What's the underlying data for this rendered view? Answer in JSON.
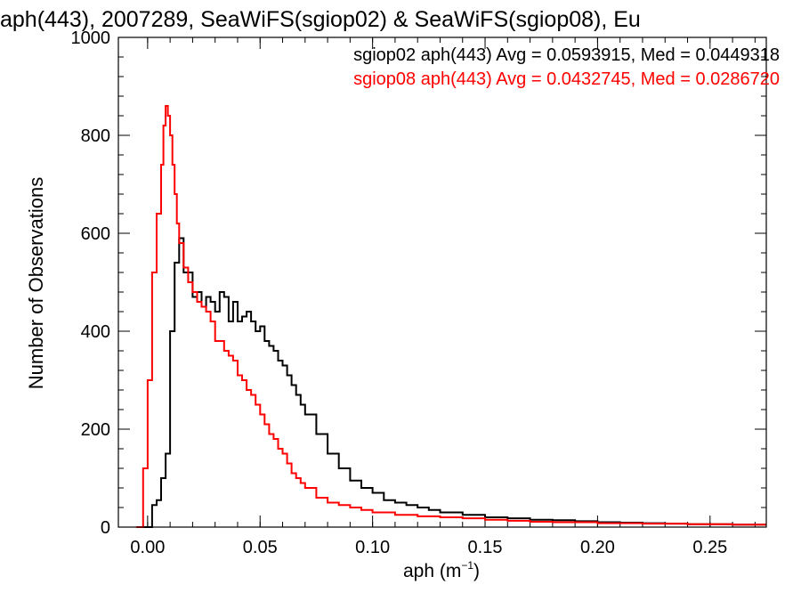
{
  "chart_data": {
    "type": "line",
    "title": "aph(443), 2007289, SeaWiFS(sgiop02) & SeaWiFS(sgiop08), Eu",
    "xlabel": "aph (m",
    "xlabel_sup": "−1",
    "xlabel_close": ")",
    "ylabel": "Number of Observations",
    "xlim": [
      -0.013,
      0.275
    ],
    "ylim": [
      0,
      1000
    ],
    "xticks": [
      0.0,
      0.05,
      0.1,
      0.15,
      0.2,
      0.25
    ],
    "xtick_labels": [
      "0.00",
      "0.05",
      "0.10",
      "0.15",
      "0.20",
      "0.25"
    ],
    "yticks": [
      0,
      200,
      400,
      600,
      800,
      1000
    ],
    "ytick_labels": [
      "0",
      "200",
      "400",
      "600",
      "800",
      "1000"
    ],
    "x_minor_step": 0.01,
    "y_minor_step": 40,
    "annotations": [
      {
        "text": "sgiop02 aph(443) Avg = 0.0593915, Med = 0.0449318",
        "color": "#000000"
      },
      {
        "text": "sgiop08 aph(443) Avg = 0.0432745, Med = 0.0286720",
        "color": "#ff0000"
      }
    ],
    "series": [
      {
        "color": "#000000",
        "x": [
          -0.002,
          0.002,
          0.004,
          0.006,
          0.008,
          0.01,
          0.012,
          0.014,
          0.016,
          0.018,
          0.02,
          0.022,
          0.024,
          0.026,
          0.028,
          0.03,
          0.032,
          0.034,
          0.036,
          0.038,
          0.04,
          0.042,
          0.044,
          0.046,
          0.048,
          0.05,
          0.052,
          0.054,
          0.056,
          0.058,
          0.06,
          0.062,
          0.064,
          0.066,
          0.068,
          0.07,
          0.075,
          0.08,
          0.085,
          0.09,
          0.095,
          0.1,
          0.105,
          0.11,
          0.115,
          0.12,
          0.125,
          0.13,
          0.14,
          0.15,
          0.16,
          0.17,
          0.18,
          0.19,
          0.2,
          0.21,
          0.22,
          0.23,
          0.24,
          0.25,
          0.26,
          0.275
        ],
        "values": [
          0,
          45,
          55,
          100,
          150,
          400,
          540,
          590,
          520,
          520,
          470,
          480,
          450,
          470,
          460,
          440,
          480,
          470,
          420,
          460,
          420,
          430,
          440,
          420,
          400,
          410,
          380,
          370,
          360,
          340,
          330,
          310,
          290,
          270,
          250,
          230,
          190,
          150,
          120,
          95,
          80,
          70,
          55,
          50,
          45,
          40,
          35,
          30,
          25,
          20,
          18,
          15,
          14,
          12,
          10,
          9,
          8,
          7,
          6,
          6,
          5,
          5
        ]
      },
      {
        "color": "#ff0000",
        "x": [
          -0.005,
          -0.002,
          0.0,
          0.002,
          0.004,
          0.006,
          0.007,
          0.008,
          0.009,
          0.01,
          0.011,
          0.012,
          0.013,
          0.014,
          0.016,
          0.018,
          0.02,
          0.022,
          0.024,
          0.026,
          0.028,
          0.03,
          0.032,
          0.034,
          0.036,
          0.038,
          0.04,
          0.042,
          0.044,
          0.046,
          0.048,
          0.05,
          0.052,
          0.054,
          0.056,
          0.058,
          0.06,
          0.062,
          0.064,
          0.066,
          0.068,
          0.07,
          0.075,
          0.08,
          0.085,
          0.09,
          0.095,
          0.1,
          0.11,
          0.12,
          0.13,
          0.14,
          0.15,
          0.16,
          0.17,
          0.18,
          0.2,
          0.22,
          0.24,
          0.26,
          0.275
        ],
        "values": [
          0,
          120,
          300,
          520,
          640,
          740,
          820,
          860,
          840,
          800,
          740,
          680,
          620,
          580,
          530,
          500,
          480,
          460,
          450,
          440,
          420,
          380,
          380,
          360,
          350,
          340,
          310,
          300,
          280,
          270,
          250,
          230,
          210,
          190,
          180,
          160,
          150,
          130,
          110,
          100,
          90,
          80,
          60,
          50,
          45,
          40,
          35,
          30,
          25,
          22,
          20,
          18,
          15,
          13,
          11,
          10,
          8,
          7,
          6,
          5,
          5
        ]
      }
    ]
  }
}
